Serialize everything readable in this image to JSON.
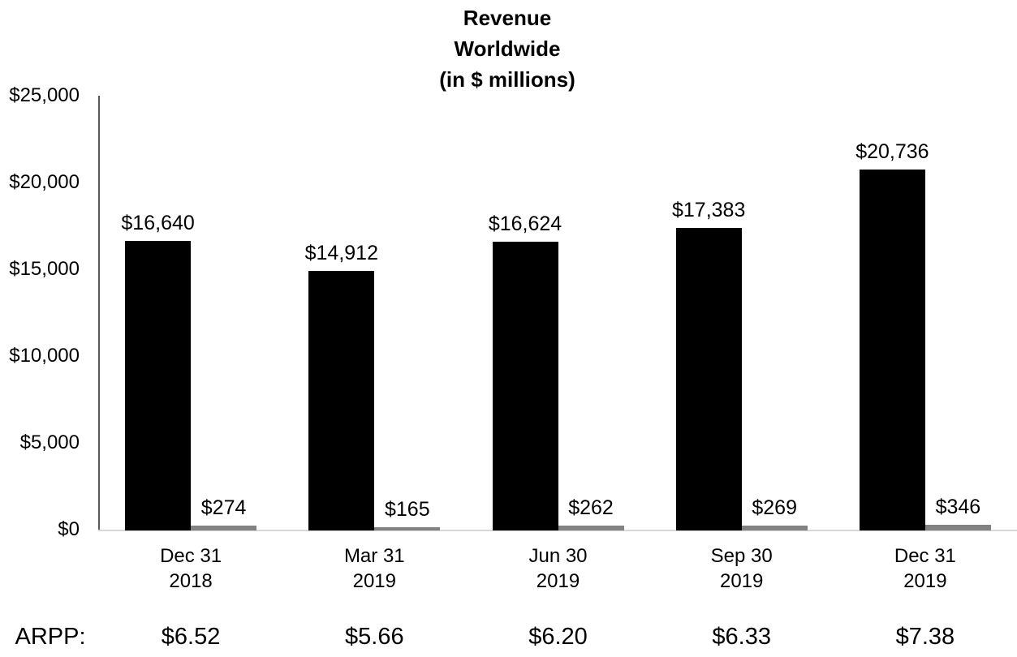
{
  "title": {
    "line1": "Revenue",
    "line2": "Worldwide",
    "line3": "(in $ millions)"
  },
  "y_axis": {
    "ticks": [
      "$25,000",
      "$20,000",
      "$15,000",
      "$10,000",
      "$5,000",
      "$0"
    ],
    "min": 0,
    "max": 25000
  },
  "chart_data": {
    "type": "bar",
    "title": "Revenue Worldwide (in $ millions)",
    "categories": [
      {
        "line1": "Dec 31",
        "line2": "2018"
      },
      {
        "line1": "Mar 31",
        "line2": "2019"
      },
      {
        "line1": "Jun 30",
        "line2": "2019"
      },
      {
        "line1": "Sep 30",
        "line2": "2019"
      },
      {
        "line1": "Dec 31",
        "line2": "2019"
      }
    ],
    "series": [
      {
        "color": "#000000",
        "values": [
          16640,
          14912,
          16624,
          17383,
          20736
        ],
        "labels": [
          "$16,640",
          "$14,912",
          "$16,624",
          "$17,383",
          "$20,736"
        ]
      },
      {
        "color": "#828282",
        "values": [
          274,
          165,
          262,
          269,
          346
        ],
        "labels": [
          "$274",
          "$165",
          "$262",
          "$269",
          "$346"
        ]
      }
    ],
    "ylim": [
      0,
      25000
    ],
    "grid": false,
    "legend": false
  },
  "arpp": {
    "label": "ARPP:",
    "values": [
      "$6.52",
      "$5.66",
      "$6.20",
      "$6.33",
      "$7.38"
    ]
  }
}
